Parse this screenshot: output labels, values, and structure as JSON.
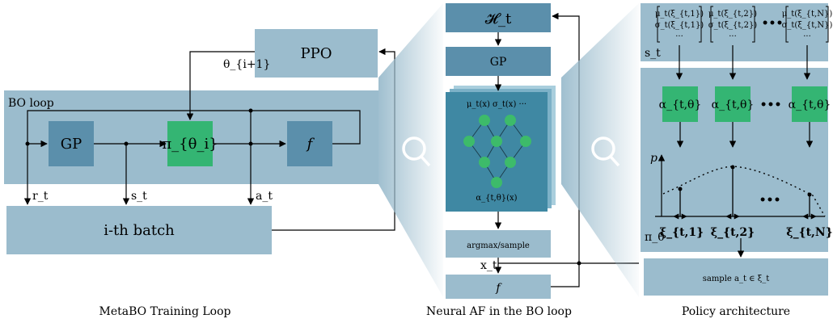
{
  "colors": {
    "panel": "#9bbccd",
    "box": "#5b8fab",
    "green": "#34b573",
    "nn_node": "#3dbb6a",
    "nn_bg": "#3f88a3",
    "nn_stack": "#a9cedd",
    "line": "#000000",
    "white": "#ffffff"
  },
  "left": {
    "ppo_label": "PPO",
    "theta_label": "θ_{i+1}",
    "bo_loop_label": "BO loop",
    "gp_label": "GP",
    "pi_label": "π_{θ_i}",
    "f_label": "f",
    "r_label": "r_t",
    "s_label": "s_t",
    "a_label": "a_t",
    "batch_label": "i-th batch",
    "caption": "MetaBO Training Loop"
  },
  "middle": {
    "h_label": "𝓗_t",
    "gp_label": "GP",
    "nn_inputs_label": "μ_t(x) σ_t(x) ···",
    "nn_output_label": "α_{t,θ}(x)",
    "argmax_label": "argmax/sample",
    "x_label": "x_t",
    "f_label": "f",
    "caption": "Neural AF in the BO loop"
  },
  "right": {
    "state_columns": [
      {
        "mu": "μ_t(ξ_{t,1})",
        "sigma": "σ_t(ξ_{t,1})",
        "more": "···"
      },
      {
        "mu": "μ_t(ξ_{t,2})",
        "sigma": "σ_t(ξ_{t,2})",
        "more": "···"
      },
      {
        "mu": "μ_t(ξ_{t,N})",
        "sigma": "σ_t(ξ_{t,N})",
        "more": "···"
      }
    ],
    "ellipsis": "•••",
    "s_label": "s_t",
    "alpha_labels": [
      "α_{t,θ}",
      "α_{t,θ}",
      "α_{t,θ}"
    ],
    "alpha_ellipsis": "•••",
    "p_label": "p",
    "pi_label": "π_θ",
    "xi_labels": [
      "ξ_{t,1}",
      "ξ_{t,2}",
      "ξ_{t,N}"
    ],
    "plot_ellipsis": "•••",
    "sample_label": "sample a_t ∈ ξ_t",
    "caption": "Policy architecture"
  }
}
